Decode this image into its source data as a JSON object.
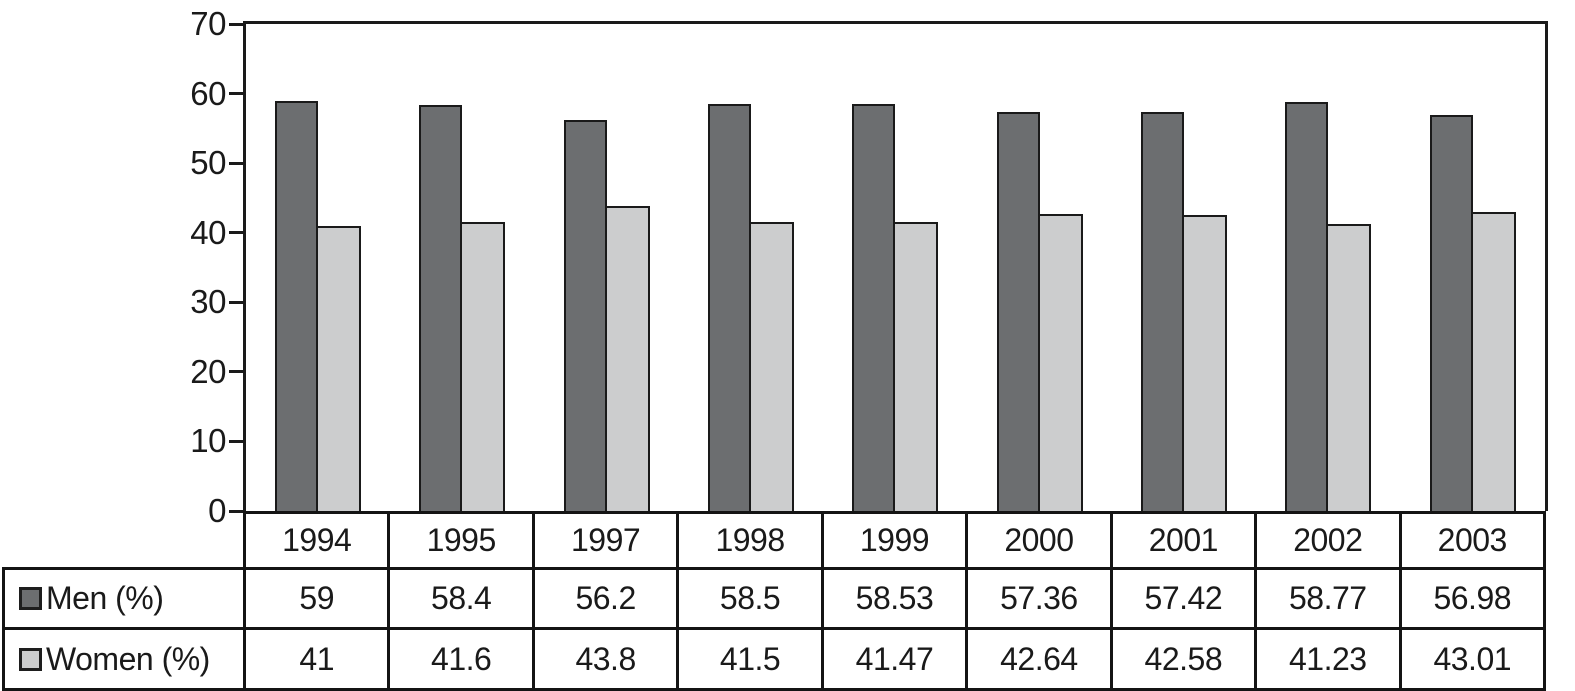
{
  "chart_data": {
    "type": "bar",
    "title": "",
    "xlabel": "",
    "ylabel": "",
    "categories": [
      "1994",
      "1995",
      "1997",
      "1998",
      "1999",
      "2000",
      "2001",
      "2002",
      "2003"
    ],
    "series": [
      {
        "name": "Men (%)",
        "color": "#6c6e70",
        "values": [
          59,
          58.4,
          56.2,
          58.5,
          58.53,
          57.36,
          57.42,
          58.77,
          56.98
        ]
      },
      {
        "name": "Women (%)",
        "color": "#cccdce",
        "values": [
          41,
          41.6,
          43.8,
          41.5,
          41.47,
          42.64,
          42.58,
          41.23,
          43.01
        ]
      }
    ],
    "ylim": [
      0,
      70
    ],
    "yticks": [
      0,
      10,
      20,
      30,
      40,
      50,
      60,
      70
    ],
    "grid": false,
    "legend_position": "table-rows-left",
    "data_table_shown": true
  },
  "colors": {
    "men_bar": "#6c6e70",
    "women_bar": "#cccdce",
    "bar_border": "#1a1a1a",
    "axis_line": "#1a1a1a",
    "table_border": "#141414",
    "text": "#1a1a1a",
    "background": "#ffffff"
  }
}
